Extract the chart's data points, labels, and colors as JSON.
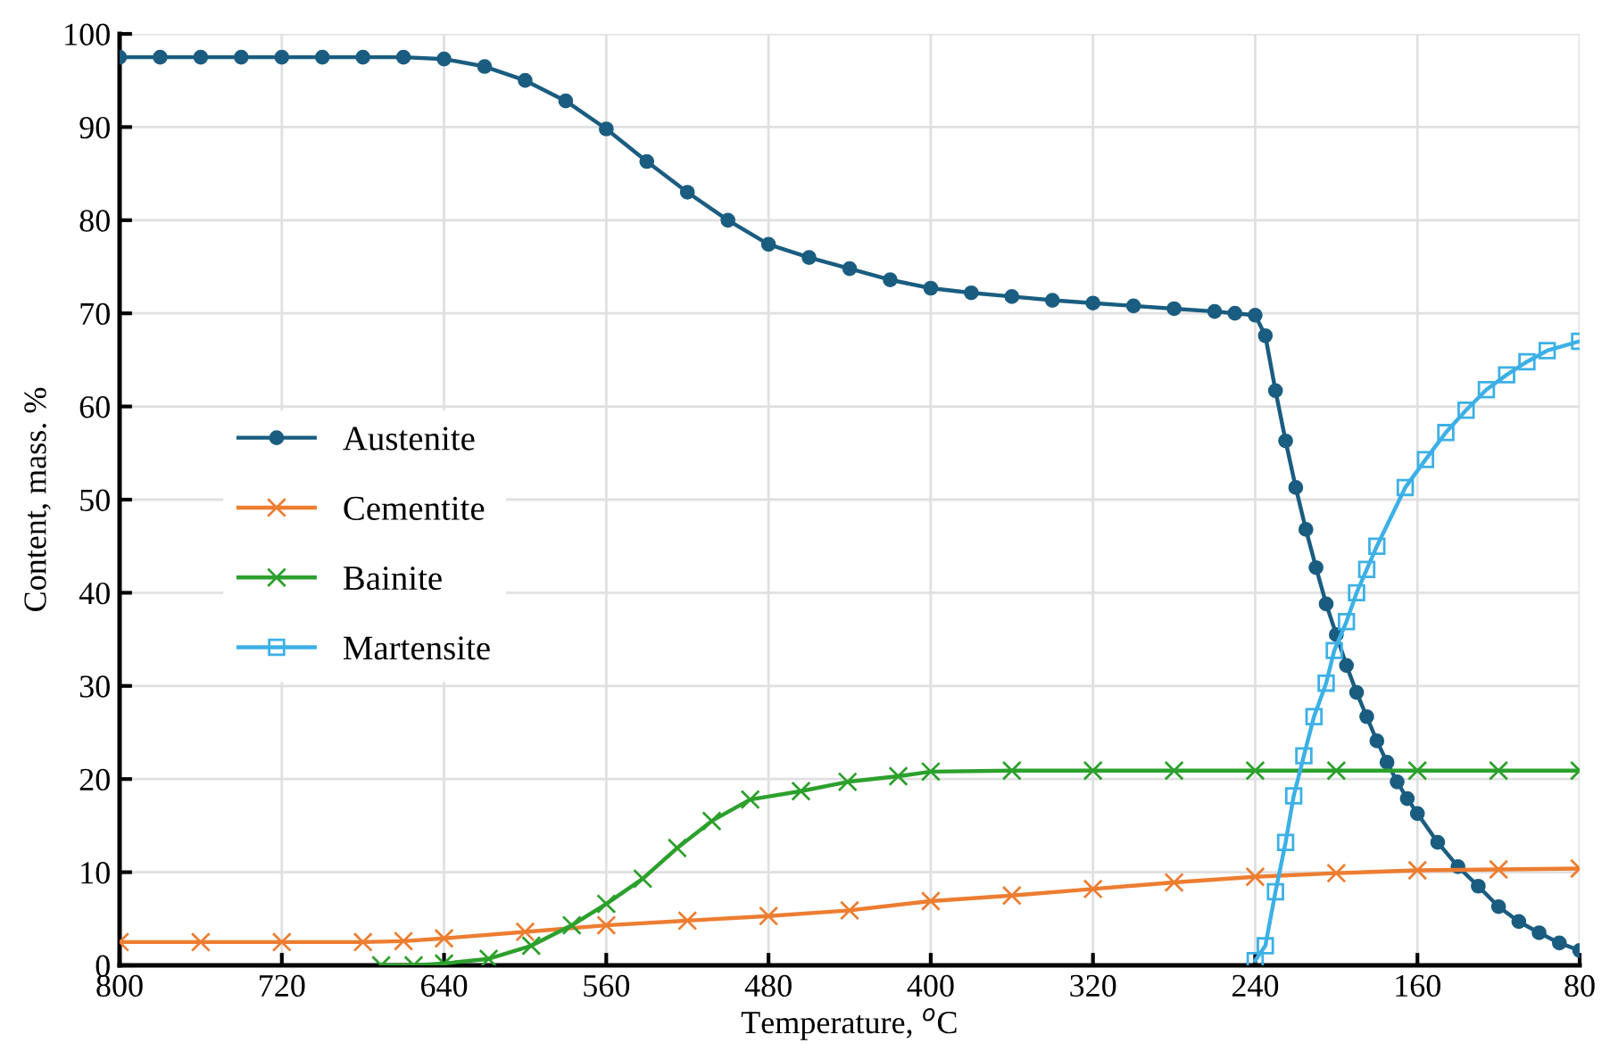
{
  "chart_data": {
    "type": "line",
    "xlabel": "Temperature, $^{o}$C",
    "ylabel": "Content, mass. %",
    "xlim": [
      800,
      80
    ],
    "xticks": [
      800,
      720,
      640,
      560,
      480,
      400,
      320,
      240,
      160,
      80
    ],
    "ylim": [
      0,
      100
    ],
    "yticks": [
      0,
      10,
      20,
      30,
      40,
      50,
      60,
      70,
      80,
      90,
      100
    ],
    "grid": true,
    "legend": "center left",
    "series": [
      {
        "name": "Austenite",
        "color": "#1a5d80",
        "marker": "circle",
        "x": [
          800,
          780,
          760,
          740,
          720,
          700,
          680,
          660,
          640,
          620,
          600,
          580,
          560,
          540,
          520,
          500,
          480,
          460,
          440,
          420,
          400,
          380,
          360,
          340,
          320,
          300,
          280,
          260,
          250,
          240,
          235,
          230,
          225,
          220,
          215,
          210,
          205,
          200,
          195,
          190,
          185,
          180,
          175,
          170,
          165,
          160,
          150,
          140,
          130,
          120,
          110,
          100,
          90,
          80
        ],
        "values": [
          97.5,
          97.5,
          97.5,
          97.5,
          97.5,
          97.5,
          97.5,
          97.5,
          97.3,
          96.5,
          95,
          92.8,
          89.8,
          86.3,
          83,
          80,
          77.4,
          76,
          74.8,
          73.6,
          72.7,
          72.2,
          71.8,
          71.4,
          71.1,
          70.8,
          70.5,
          70.2,
          70,
          69.8,
          67.6,
          61.7,
          56.3,
          51.3,
          46.8,
          42.7,
          38.8,
          35.5,
          32.2,
          29.3,
          26.7,
          24.1,
          21.8,
          19.7,
          17.9,
          16.3,
          13.2,
          10.6,
          8.5,
          6.3,
          4.7,
          3.5,
          2.4,
          1.6
        ]
      },
      {
        "name": "Cementite",
        "color": "#ed7d31",
        "marker": "cross",
        "x": [
          800,
          760,
          720,
          680,
          660,
          640,
          600,
          560,
          520,
          480,
          440,
          400,
          360,
          320,
          280,
          240,
          200,
          160,
          120,
          80
        ],
        "values": [
          2.5,
          2.5,
          2.5,
          2.5,
          2.6,
          2.9,
          3.6,
          4.3,
          4.8,
          5.3,
          5.9,
          6.9,
          7.5,
          8.2,
          8.9,
          9.5,
          9.9,
          10.2,
          10.3,
          10.4
        ]
      },
      {
        "name": "Bainite",
        "color": "#2ca02c",
        "marker": "cross",
        "x": [
          671,
          655,
          640,
          618,
          597,
          577,
          560,
          542,
          525,
          508,
          489,
          464,
          441,
          416,
          400,
          360,
          320,
          280,
          240,
          200,
          160,
          120,
          80
        ],
        "values": [
          0,
          0,
          0.2,
          0.7,
          2.1,
          4.3,
          6.6,
          9.3,
          12.6,
          15.5,
          17.8,
          18.7,
          19.7,
          20.3,
          20.8,
          20.9,
          20.9,
          20.9,
          20.9,
          20.9,
          20.9,
          20.9,
          20.9
        ]
      },
      {
        "name": "Martensite",
        "color": "#3cb0e6",
        "marker": "square",
        "x": [
          240,
          235,
          230,
          225,
          221,
          216,
          211,
          205,
          201,
          195,
          190,
          185,
          180,
          166,
          156,
          146,
          136,
          126,
          116,
          106,
          96,
          80
        ],
        "values": [
          0.5,
          2.1,
          7.9,
          13.2,
          18.2,
          22.5,
          26.7,
          30.3,
          33.8,
          36.9,
          40,
          42.5,
          45,
          51.3,
          54.3,
          57.2,
          59.6,
          61.8,
          63.4,
          64.8,
          66,
          67
        ]
      }
    ]
  }
}
